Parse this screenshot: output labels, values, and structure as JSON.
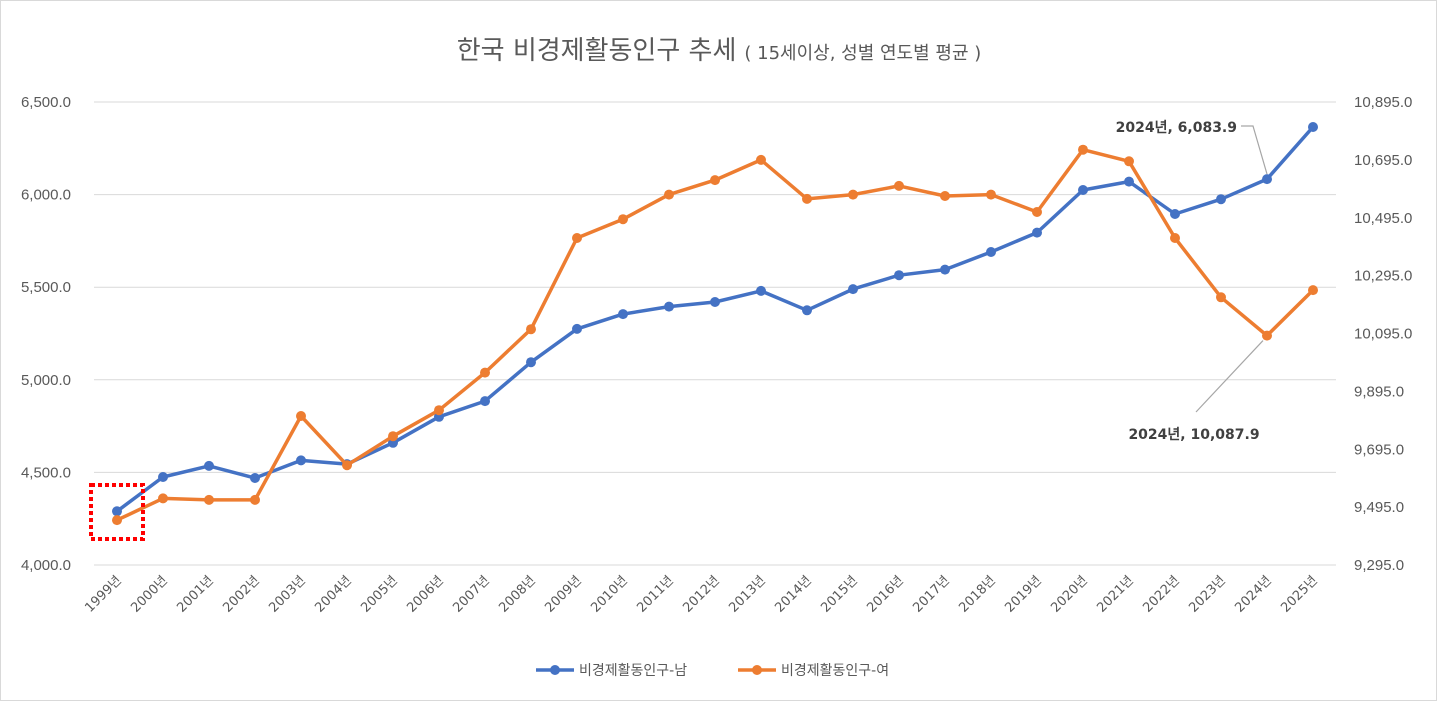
{
  "chart_data": {
    "type": "line",
    "title": "한국 비경제활동인구 추세",
    "subtitle": "( 15세이상, 성별 연도별 평균 )",
    "categories": [
      "1999년",
      "2000년",
      "2001년",
      "2002년",
      "2003년",
      "2004년",
      "2005년",
      "2006년",
      "2007년",
      "2008년",
      "2009년",
      "2010년",
      "2011년",
      "2012년",
      "2013년",
      "2014년",
      "2015년",
      "2016년",
      "2017년",
      "2018년",
      "2019년",
      "2020년",
      "2021년",
      "2022년",
      "2023년",
      "2024년",
      "2025년"
    ],
    "y_left": {
      "ylim": [
        4000,
        6500
      ],
      "ticks": [
        "4,000.0",
        "4,500.0",
        "5,000.0",
        "5,500.0",
        "6,000.0",
        "6,500.0"
      ]
    },
    "y_right": {
      "ylim": [
        9295,
        10895
      ],
      "ticks": [
        "9,295.0",
        "9,495.0",
        "9,695.0",
        "9,895.0",
        "10,095.0",
        "10,295.0",
        "10,495.0",
        "10,695.0",
        "10,895.0"
      ]
    },
    "grid": true,
    "legend_position": "bottom",
    "series": [
      {
        "name": "비경제활동인구-남",
        "axis": "left",
        "color": "#4472C4",
        "values": [
          4290,
          4475,
          4535,
          4470,
          4565,
          4545,
          4660,
          4800,
          4885,
          5095,
          5275,
          5355,
          5395,
          5420,
          5480,
          5375,
          5490,
          5565,
          5595,
          5690,
          5795,
          6025,
          6070,
          5895,
          5975,
          6083.9,
          6365
        ]
      },
      {
        "name": "비경제활동인구-여",
        "axis": "right",
        "color": "#ED7D31",
        "values": [
          9450,
          9525,
          9520,
          9520,
          9810,
          9640,
          9740,
          9830,
          9960,
          10110,
          10425,
          10490,
          10575,
          10625,
          10695,
          10560,
          10575,
          10605,
          10570,
          10575,
          10515,
          10730,
          10690,
          10425,
          10220,
          10087.9,
          10245
        ]
      }
    ],
    "annotations": [
      {
        "text": "2024년, 6,083.9",
        "series": 0,
        "index": 25
      },
      {
        "text": "2024년, 10,087.9",
        "series": 1,
        "index": 25
      }
    ],
    "highlight": {
      "index": 0,
      "style": "red-dotted-box"
    }
  }
}
